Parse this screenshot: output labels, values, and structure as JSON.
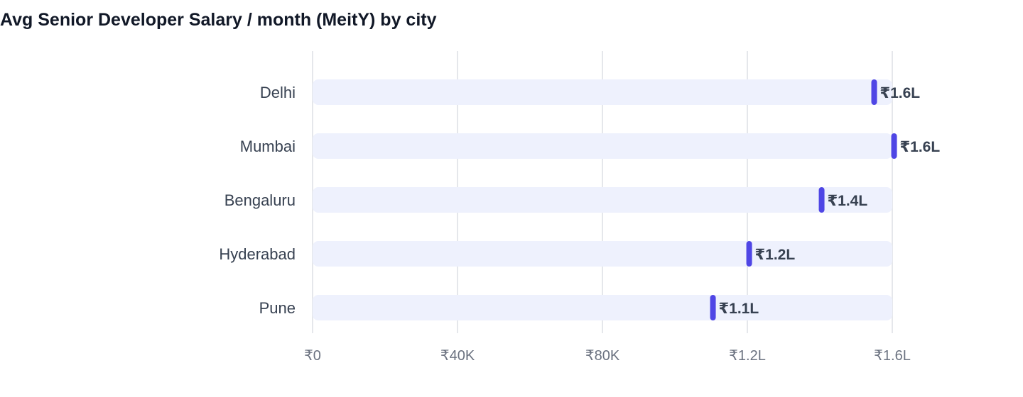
{
  "chart_data": {
    "type": "bar",
    "title": "Avg Senior Developer Salary / month (MeitY) by city",
    "categories": [
      "Delhi",
      "Mumbai",
      "Bengaluru",
      "Hyderabad",
      "Pune"
    ],
    "values": [
      155000,
      160500,
      140500,
      120500,
      110500
    ],
    "value_labels": [
      "₹1.6L",
      "₹1.6L",
      "₹1.4L",
      "₹1.2L",
      "₹1.1L"
    ],
    "xlim": [
      0,
      160000
    ],
    "xticks": [
      0,
      40000,
      80000,
      120000,
      160000
    ],
    "xtick_labels": [
      "₹0",
      "₹40K",
      "₹80K",
      "₹1.2L",
      "₹1.6L"
    ],
    "xlabel": "",
    "ylabel": "",
    "grid": true,
    "colors": {
      "marker": "#4f46e5",
      "track": "#eef1fd",
      "grid": "#e5e7eb"
    }
  }
}
